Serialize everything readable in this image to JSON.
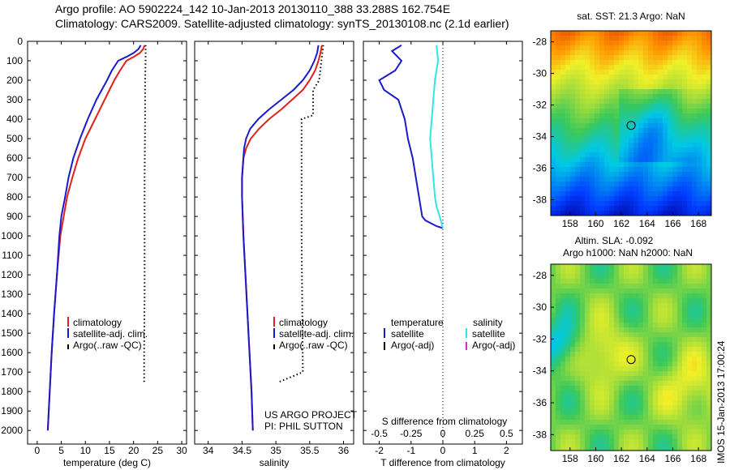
{
  "header": {
    "line1": "Argo profile: AO 5902224_142 10-Jan-2013 20130110_388 33.288S 162.754E",
    "line2": "Climatology: CARS2009. Satellite-adjusted climatology: synTS_20130108.nc (2.1d earlier)"
  },
  "colors": {
    "climatology": "#e0201a",
    "satellite": "#1a1acc",
    "argo": "#000000",
    "salinity_satellite": "#33e6e6",
    "salinity_argo": "#cc33cc"
  },
  "footer": {
    "project": "US ARGO PROJECT",
    "pi": "PI: PHIL SUTTON",
    "imos_stamp": "IMOS 15-Jan-2013 17:00:24"
  },
  "chart_data": [
    {
      "type": "line",
      "name": "temperature",
      "xlabel": "temperature (deg C)",
      "ylabel": "",
      "xlim": [
        -2,
        31
      ],
      "ylim": [
        2070,
        0
      ],
      "xticks": [
        0,
        5,
        10,
        15,
        20,
        25,
        30
      ],
      "yticks": [
        0,
        100,
        200,
        300,
        400,
        500,
        600,
        700,
        800,
        900,
        1000,
        1100,
        1200,
        1300,
        1400,
        1500,
        1600,
        1700,
        1800,
        1900,
        2000
      ],
      "legend": {
        "position": "lower-right",
        "labels": [
          "climatology",
          "satellite-adj. clim.",
          "Argo(..raw -QC)"
        ]
      },
      "series": [
        {
          "name": "climatology",
          "x": [
            22.3,
            22.0,
            21.3,
            20.0,
            18.5,
            17.2,
            16.0,
            14.0,
            12.0,
            10.0,
            8.5,
            7.3,
            6.2,
            5.5,
            4.8,
            4.1,
            3.5,
            3.0,
            2.8,
            2.6,
            2.4,
            2.2
          ],
          "y": [
            20,
            40,
            60,
            80,
            100,
            150,
            200,
            300,
            400,
            500,
            600,
            700,
            800,
            900,
            1000,
            1200,
            1400,
            1600,
            1700,
            1800,
            1900,
            2000
          ]
        },
        {
          "name": "satellite-adj. clim.",
          "x": [
            21.5,
            21.0,
            20.0,
            18.5,
            16.8,
            15.5,
            14.5,
            12.3,
            10.5,
            8.9,
            7.5,
            6.5,
            5.8,
            5.0,
            4.6,
            4.1,
            3.5,
            3.0,
            2.8,
            2.6,
            2.4,
            2.2
          ],
          "y": [
            20,
            40,
            60,
            80,
            100,
            150,
            200,
            300,
            400,
            500,
            600,
            700,
            800,
            900,
            1000,
            1200,
            1400,
            1600,
            1700,
            1800,
            1900,
            2000
          ]
        },
        {
          "name": "Argo(..raw -QC)",
          "style": "dotted",
          "x": [
            22.5,
            22.5,
            22.4,
            22.4,
            22.3,
            22.3,
            22.3,
            22.2,
            22.2
          ],
          "y": [
            20,
            100,
            200,
            400,
            700,
            1000,
            1300,
            1600,
            1750
          ]
        }
      ]
    },
    {
      "type": "line",
      "name": "salinity",
      "xlabel": "salinity",
      "ylabel": "",
      "xlim": [
        33.8,
        36.15
      ],
      "ylim": [
        2070,
        0
      ],
      "xticks": [
        34,
        34.5,
        35,
        35.5,
        36
      ],
      "yticks": [],
      "legend": {
        "position": "lower-right",
        "labels": [
          "climatology",
          "satellite-adj. clim.",
          "Argo(..raw -QC)"
        ]
      },
      "series": [
        {
          "name": "climatology",
          "x": [
            35.68,
            35.66,
            35.63,
            35.58,
            35.5,
            35.4,
            35.24,
            35.08,
            34.9,
            34.75,
            34.63,
            34.56,
            34.52,
            34.5,
            34.5,
            34.52,
            34.55,
            34.58,
            34.61,
            34.64,
            34.66
          ],
          "y": [
            20,
            60,
            100,
            150,
            200,
            250,
            300,
            350,
            400,
            450,
            500,
            550,
            600,
            700,
            800,
            1000,
            1200,
            1400,
            1600,
            1800,
            2000
          ]
        },
        {
          "name": "satellite-adj. clim.",
          "x": [
            35.63,
            35.61,
            35.57,
            35.5,
            35.4,
            35.26,
            35.08,
            34.9,
            34.74,
            34.62,
            34.56,
            34.53,
            34.52,
            34.5,
            34.5,
            34.52,
            34.55,
            34.58,
            34.61,
            34.64,
            34.66
          ],
          "y": [
            20,
            60,
            100,
            150,
            200,
            250,
            300,
            350,
            400,
            450,
            500,
            550,
            600,
            700,
            800,
            1000,
            1200,
            1400,
            1600,
            1800,
            2000
          ]
        },
        {
          "name": "Argo(..raw -QC)",
          "style": "dotted",
          "x": [
            35.7,
            35.64,
            35.55,
            35.55,
            35.38,
            35.38,
            35.4,
            35.05
          ],
          "y": [
            20,
            200,
            250,
            380,
            400,
            1000,
            1700,
            1750
          ]
        }
      ]
    },
    {
      "type": "line",
      "name": "difference",
      "xlabel": "T difference from climatology",
      "xlabel_top": "S difference from climatology",
      "ylabel": "",
      "xlim": [
        -2.5,
        2.5
      ],
      "ylim": [
        2070,
        0
      ],
      "xticks": [
        -2,
        -1,
        0,
        1,
        2
      ],
      "xticks_secondary": [
        "-0.5",
        "-0.25",
        "0",
        "0.25",
        "0.5"
      ],
      "yticks": [],
      "legend": {
        "position": "lower-center",
        "headers": [
          "temperature",
          "salinity"
        ],
        "labels": [
          "satellite",
          "Argo(-adj)",
          "satellite",
          "Argo(-adj)"
        ]
      },
      "series": [
        {
          "name": "satellite",
          "quantity": "temperature",
          "x": [
            -1.3,
            -1.6,
            -1.3,
            -1.5,
            -2.0,
            -1.85,
            -1.4,
            -1.2,
            -1.1,
            -0.95,
            -0.85,
            -0.75,
            -0.65,
            -0.55,
            -0.2,
            0.0
          ],
          "y": [
            20,
            50,
            100,
            150,
            200,
            250,
            300,
            400,
            500,
            600,
            700,
            800,
            900,
            920,
            950,
            960
          ]
        },
        {
          "name": "satellite",
          "quantity": "salinity",
          "x": [
            -0.2,
            -0.15,
            -0.25,
            -0.3,
            -0.35,
            -0.4,
            -0.35,
            -0.3,
            -0.25,
            -0.2,
            -0.1,
            0.0
          ],
          "y": [
            20,
            100,
            200,
            300,
            400,
            500,
            600,
            700,
            800,
            850,
            900,
            960
          ]
        }
      ]
    },
    {
      "type": "heatmap",
      "name": "sst-map",
      "title": "sat. SST: 21.3 Argo: NaN",
      "xlim": [
        156.5,
        169
      ],
      "ylim": [
        -39,
        -27.3
      ],
      "xticks": [
        158,
        160,
        162,
        164,
        166,
        168
      ],
      "yticks": [
        -28,
        -30,
        -32,
        -34,
        -36,
        -38
      ],
      "marker": {
        "lon": 162.754,
        "lat": -33.288
      }
    },
    {
      "type": "heatmap",
      "name": "sla-map",
      "title_line1": "Altim. SLA: -0.092",
      "title_line2": "Argo h1000: NaN h2000: NaN",
      "xlim": [
        156.5,
        169
      ],
      "ylim": [
        -39,
        -27.3
      ],
      "xticks": [
        158,
        160,
        162,
        164,
        166,
        168
      ],
      "yticks": [
        -28,
        -30,
        -32,
        -34,
        -36,
        -38
      ],
      "marker": {
        "lon": 162.754,
        "lat": -33.288
      }
    }
  ]
}
